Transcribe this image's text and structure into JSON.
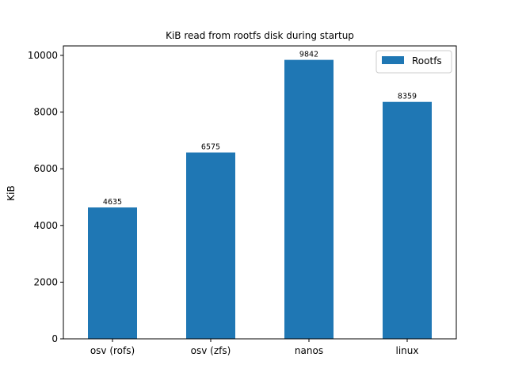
{
  "chart_data": {
    "type": "bar",
    "title": "KiB read from rootfs disk during startup",
    "xlabel": "",
    "ylabel": "KiB",
    "categories": [
      "osv (rofs)",
      "osv (zfs)",
      "nanos",
      "linux"
    ],
    "series": [
      {
        "name": "Rootfs",
        "values": [
          4635,
          6575,
          9842,
          8359
        ],
        "color": "#1f77b4"
      }
    ],
    "data_labels": [
      "4635",
      "6575",
      "9842",
      "8359"
    ],
    "yticks": [
      0,
      2000,
      4000,
      6000,
      8000,
      10000
    ],
    "ytick_labels": [
      "0",
      "2000",
      "4000",
      "6000",
      "8000",
      "10000"
    ],
    "ylim": [
      0,
      10334
    ],
    "grid": false,
    "legend_position": "top-right"
  }
}
